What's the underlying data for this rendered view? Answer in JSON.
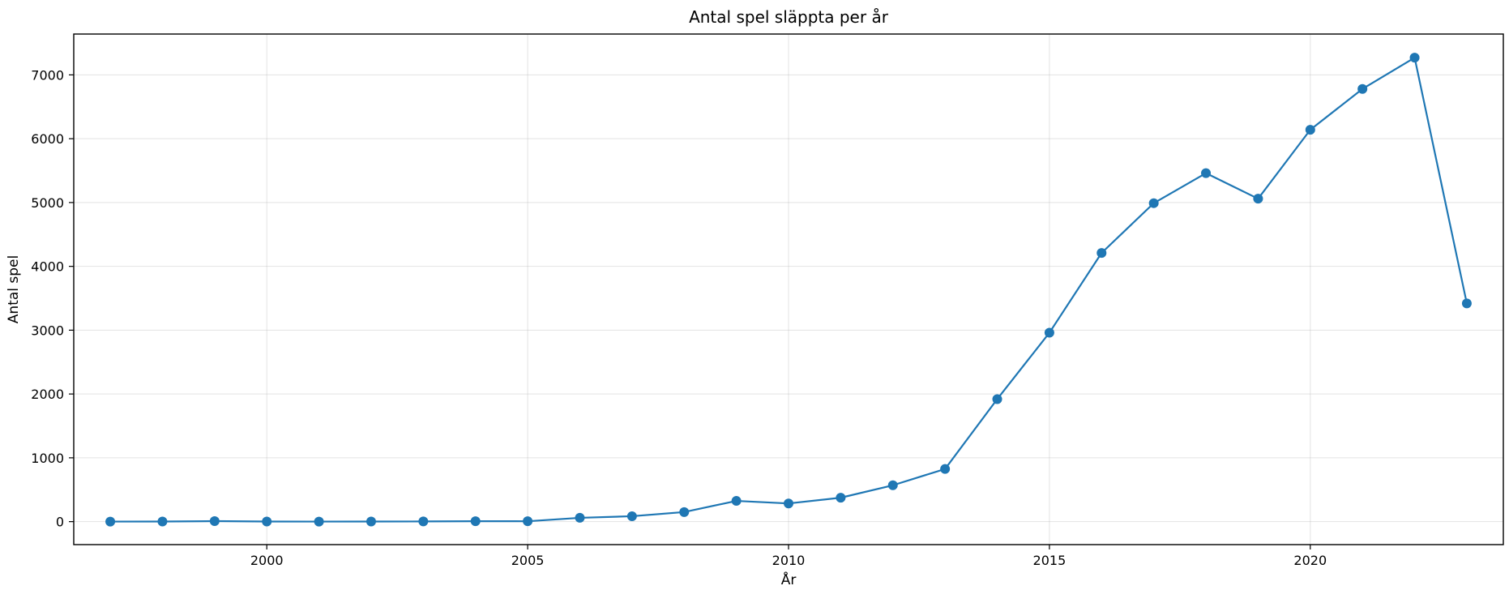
{
  "chart_data": {
    "type": "line",
    "title": "Antal spel släppta per år",
    "xlabel": "År",
    "ylabel": "Antal spel",
    "xlim": [
      1996.3,
      2023.7
    ],
    "ylim": [
      -360,
      7640
    ],
    "xticks": [
      2000,
      2005,
      2010,
      2015,
      2020
    ],
    "yticks": [
      0,
      1000,
      2000,
      3000,
      4000,
      5000,
      6000,
      7000
    ],
    "grid": true,
    "color": "#1f77b4",
    "marker": "circle",
    "series": [
      {
        "x": [
          1997,
          1998,
          1999,
          2000,
          2001,
          2002,
          2003,
          2004,
          2005,
          2006,
          2007,
          2008,
          2009,
          2010,
          2011,
          2012,
          2013,
          2014,
          2015,
          2016,
          2017,
          2018,
          2019,
          2020,
          2021,
          2022,
          2023
        ],
        "y": [
          1,
          2,
          8,
          2,
          1,
          2,
          3,
          7,
          6,
          60,
          85,
          150,
          325,
          285,
          375,
          570,
          825,
          1920,
          2960,
          4210,
          4990,
          5460,
          5060,
          6140,
          6780,
          7270,
          3420
        ]
      }
    ]
  }
}
